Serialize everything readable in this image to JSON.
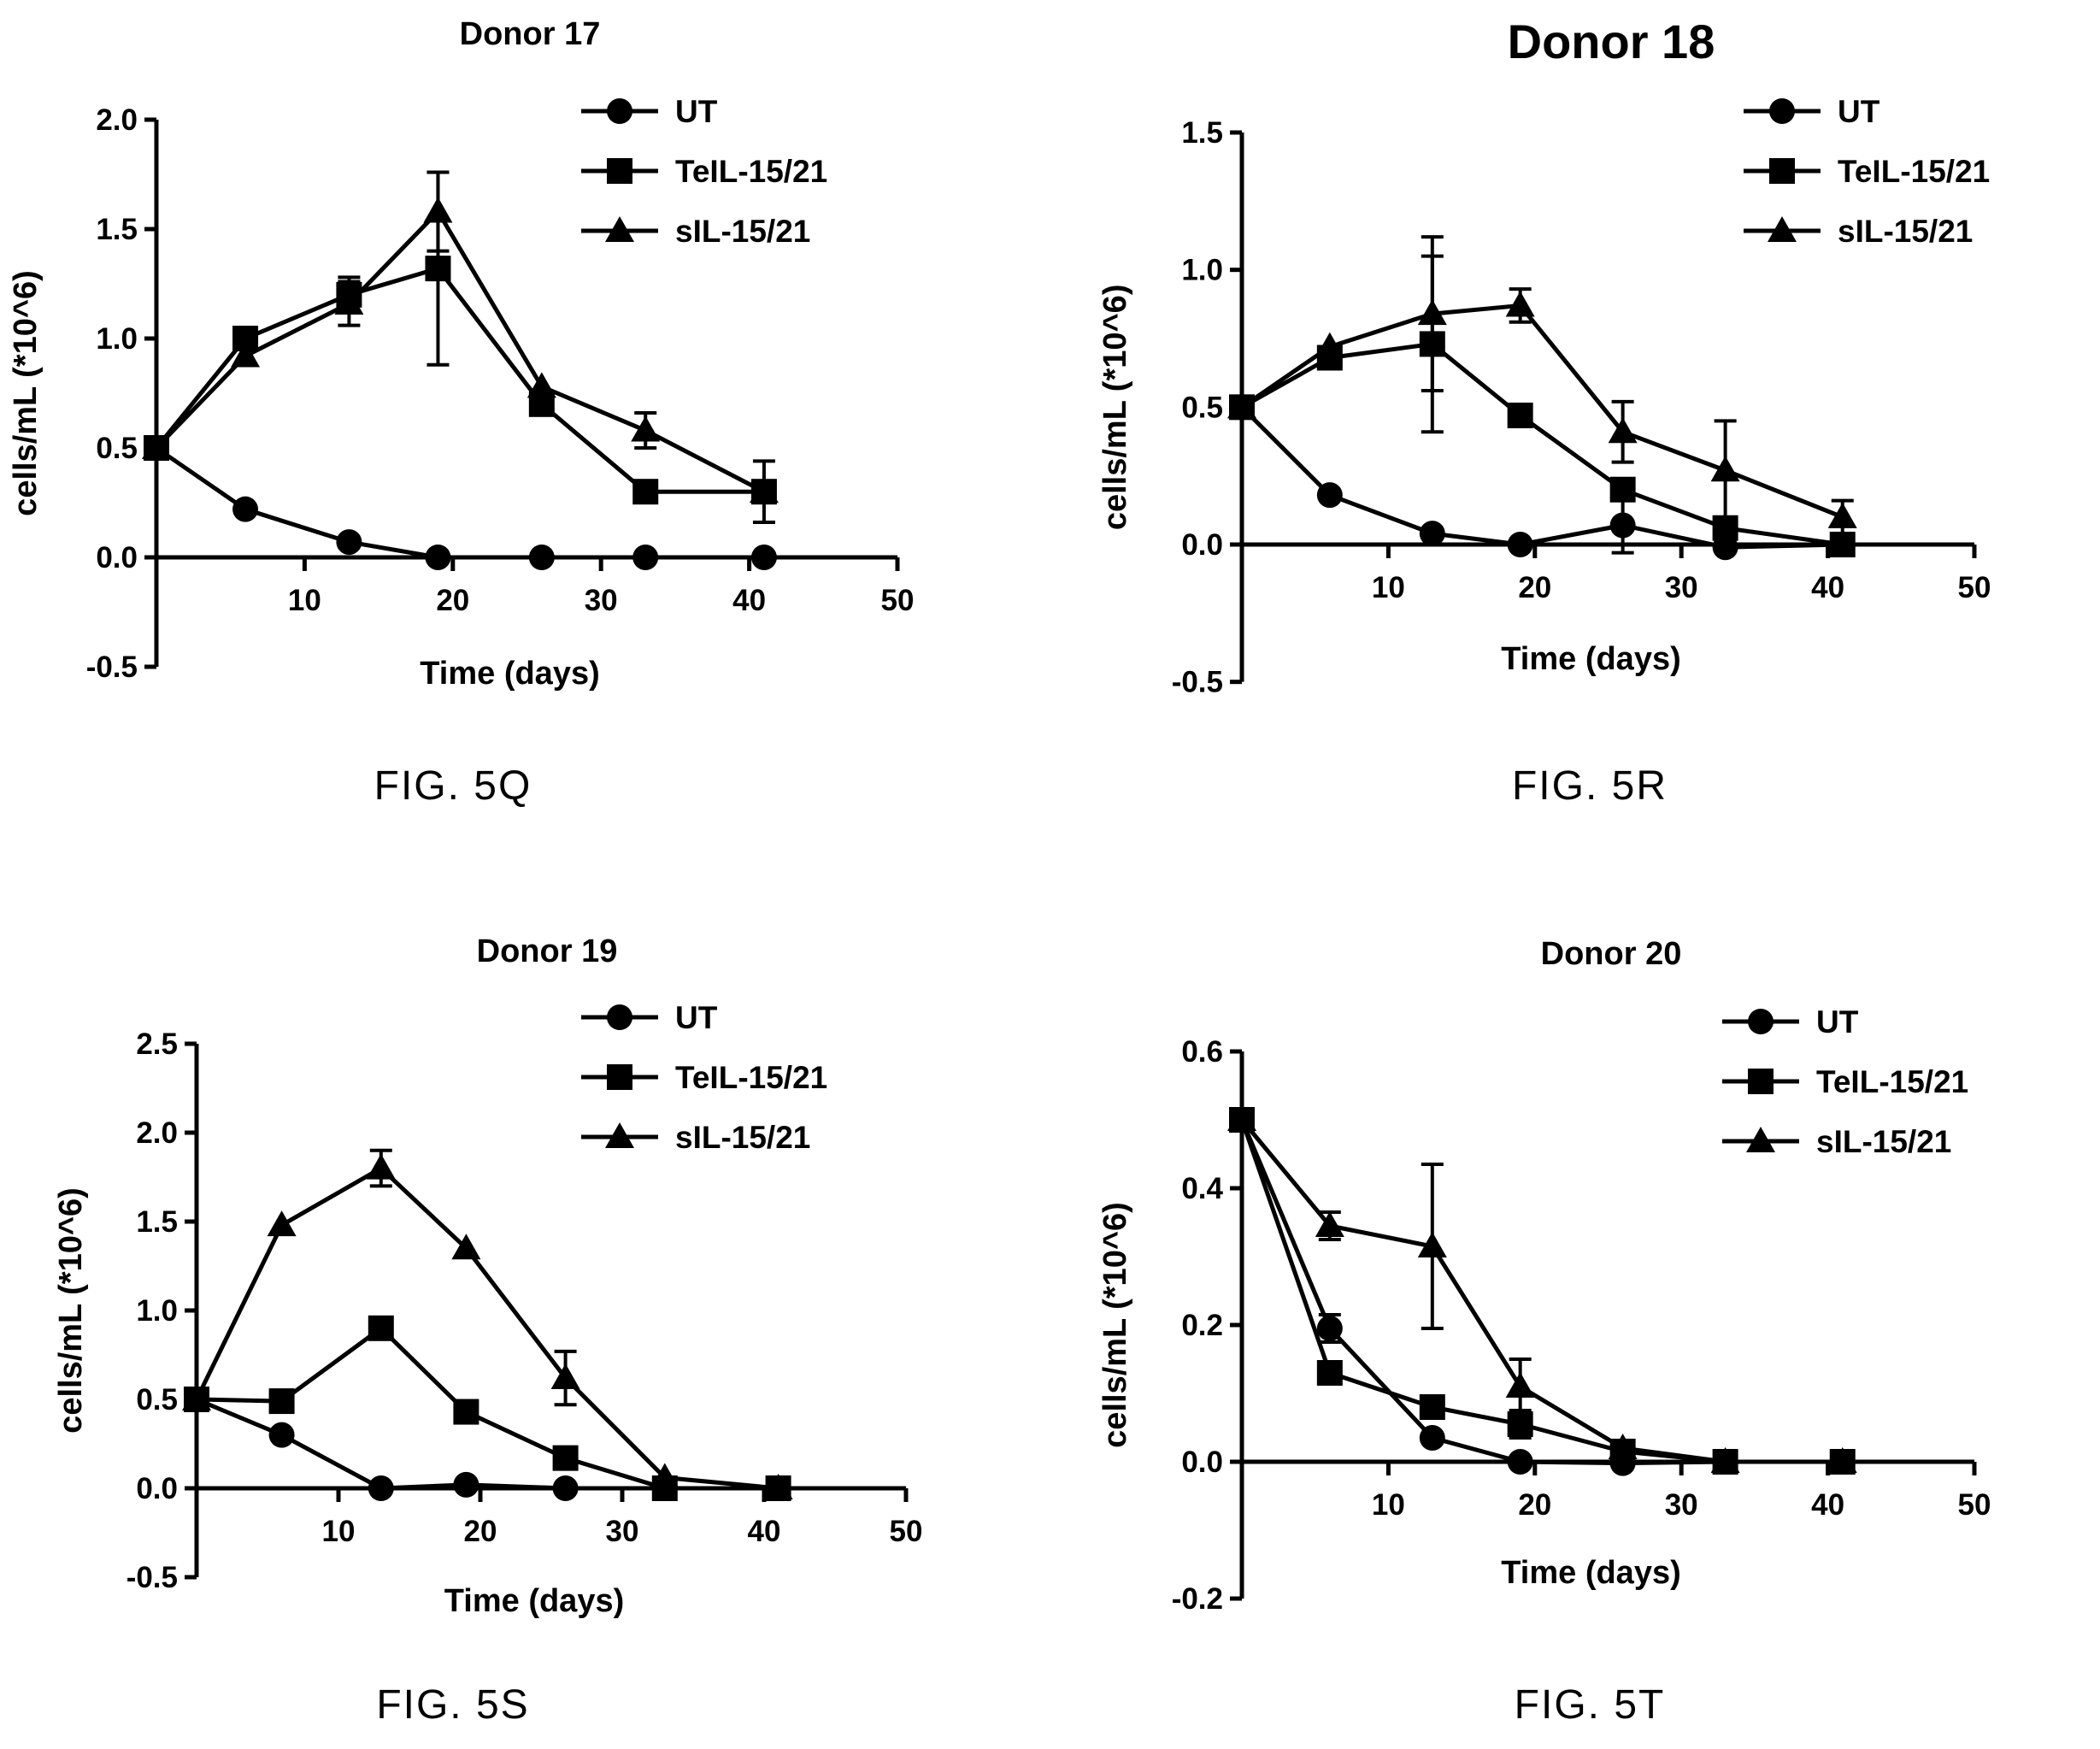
{
  "panels": [
    {
      "caption": "FIG. 5Q",
      "chart_data": {
        "type": "line",
        "title": "Donor 17",
        "xlabel": "Time (days)",
        "ylabel": "cells/mL (*10^6)",
        "xlim": [
          0,
          50
        ],
        "ylim": [
          -0.5,
          2.0
        ],
        "xticks": [
          "10",
          "20",
          "30",
          "40",
          "50"
        ],
        "yticks": [
          "-0.5",
          "0.0",
          "0.5",
          "1.0",
          "1.5",
          "2.0"
        ],
        "legend_position": "top-right",
        "series": [
          {
            "name": "UT",
            "marker": "circle",
            "x": [
              0,
              6,
              13,
              19,
              26,
              33,
              41
            ],
            "y": [
              0.5,
              0.22,
              0.07,
              0.0,
              0.0,
              0.0,
              0.0
            ],
            "err": [
              0,
              0,
              0,
              0,
              0,
              0,
              0
            ]
          },
          {
            "name": "TeIL-15/21",
            "marker": "square",
            "x": [
              0,
              6,
              13,
              19,
              26,
              33,
              41
            ],
            "y": [
              0.5,
              1.0,
              1.2,
              1.32,
              0.7,
              0.3,
              0.3
            ],
            "err": [
              0,
              0,
              0.08,
              0.44,
              0,
              0,
              0.14
            ]
          },
          {
            "name": "sIL-15/21",
            "marker": "triangle",
            "x": [
              0,
              6,
              13,
              19,
              26,
              33,
              41
            ],
            "y": [
              0.5,
              0.92,
              1.16,
              1.58,
              0.78,
              0.58,
              0.3
            ],
            "err": [
              0,
              0,
              0.1,
              0.18,
              0,
              0.08,
              0
            ]
          }
        ]
      }
    },
    {
      "caption": "FIG. 5R",
      "chart_data": {
        "type": "line",
        "title": "Donor 18",
        "xlabel": "Time (days)",
        "ylabel": "cells/mL (*10^6)",
        "xlim": [
          0,
          50
        ],
        "ylim": [
          -0.5,
          1.5
        ],
        "xticks": [
          "10",
          "20",
          "30",
          "40",
          "50"
        ],
        "yticks": [
          "-0.5",
          "0.0",
          "0.5",
          "1.0",
          "1.5"
        ],
        "legend_position": "top-right",
        "series": [
          {
            "name": "UT",
            "marker": "circle",
            "x": [
              0,
              6,
              13,
              19,
              26,
              33,
              41
            ],
            "y": [
              0.5,
              0.18,
              0.04,
              0.0,
              0.07,
              -0.01,
              0.0
            ],
            "err": [
              0,
              0,
              0,
              0,
              0.1,
              0,
              0
            ]
          },
          {
            "name": "TeIL-15/21",
            "marker": "square",
            "x": [
              0,
              6,
              13,
              19,
              26,
              33,
              41
            ],
            "y": [
              0.5,
              0.68,
              0.73,
              0.47,
              0.2,
              0.06,
              0.0
            ],
            "err": [
              0,
              0,
              0.32,
              0,
              0,
              0,
              0
            ]
          },
          {
            "name": "sIL-15/21",
            "marker": "triangle",
            "x": [
              0,
              6,
              13,
              19,
              26,
              33,
              41
            ],
            "y": [
              0.5,
              0.72,
              0.84,
              0.87,
              0.41,
              0.27,
              0.1
            ],
            "err": [
              0,
              0,
              0.28,
              0.06,
              0.11,
              0.18,
              0.06
            ]
          }
        ]
      }
    },
    {
      "caption": "FIG. 5S",
      "chart_data": {
        "type": "line",
        "title": "Donor 19",
        "xlabel": "Time (days)",
        "ylabel": "cells/mL (*10^6)",
        "xlim": [
          0,
          50
        ],
        "ylim": [
          -0.5,
          2.5
        ],
        "xticks": [
          "10",
          "20",
          "30",
          "40",
          "50"
        ],
        "yticks": [
          "-0.5",
          "0.0",
          "0.5",
          "1.0",
          "1.5",
          "2.0",
          "2.5"
        ],
        "legend_position": "top-right",
        "series": [
          {
            "name": "UT",
            "marker": "circle",
            "x": [
              0,
              6,
              13,
              19,
              26,
              33,
              41
            ],
            "y": [
              0.5,
              0.3,
              0.0,
              0.02,
              0.0,
              0.0,
              0.0
            ],
            "err": [
              0,
              0,
              0,
              0,
              0,
              0,
              0
            ]
          },
          {
            "name": "TeIL-15/21",
            "marker": "square",
            "x": [
              0,
              6,
              13,
              19,
              26,
              33,
              41
            ],
            "y": [
              0.5,
              0.49,
              0.9,
              0.43,
              0.17,
              0.0,
              0.0
            ],
            "err": [
              0,
              0,
              0,
              0,
              0,
              0,
              0
            ]
          },
          {
            "name": "sIL-15/21",
            "marker": "triangle",
            "x": [
              0,
              6,
              13,
              19,
              26,
              33,
              41
            ],
            "y": [
              0.5,
              1.48,
              1.8,
              1.35,
              0.62,
              0.06,
              0.0
            ],
            "err": [
              0,
              0,
              0.1,
              0,
              0.15,
              0,
              0
            ]
          }
        ]
      }
    },
    {
      "caption": "FIG. 5T",
      "chart_data": {
        "type": "line",
        "title": "Donor 20",
        "xlabel": "Time (days)",
        "ylabel": "cells/mL (*10^6)",
        "xlim": [
          0,
          50
        ],
        "ylim": [
          -0.2,
          0.6
        ],
        "xticks": [
          "10",
          "20",
          "30",
          "40",
          "50"
        ],
        "yticks": [
          "-0.2",
          "0.0",
          "0.2",
          "0.4",
          "0.6"
        ],
        "legend_position": "top-right",
        "series": [
          {
            "name": "UT",
            "marker": "circle",
            "x": [
              0,
              6,
              13,
              19,
              26,
              33,
              41
            ],
            "y": [
              0.5,
              0.195,
              0.035,
              0.0,
              -0.002,
              0.0,
              0.0
            ],
            "err": [
              0,
              0.02,
              0,
              0,
              0,
              0,
              0
            ]
          },
          {
            "name": "TeIL-15/21",
            "marker": "square",
            "x": [
              0,
              6,
              13,
              19,
              26,
              33,
              41
            ],
            "y": [
              0.5,
              0.13,
              0.08,
              0.055,
              0.015,
              0.0,
              0.0
            ],
            "err": [
              0,
              0,
              0,
              0.02,
              0,
              0,
              0
            ]
          },
          {
            "name": "sIL-15/21",
            "marker": "triangle",
            "x": [
              0,
              6,
              13,
              19,
              26,
              33,
              41
            ],
            "y": [
              0.5,
              0.345,
              0.315,
              0.11,
              0.02,
              0.0,
              0.0
            ],
            "err": [
              0,
              0.02,
              0.12,
              0.04,
              0,
              0,
              0
            ]
          }
        ]
      }
    }
  ]
}
